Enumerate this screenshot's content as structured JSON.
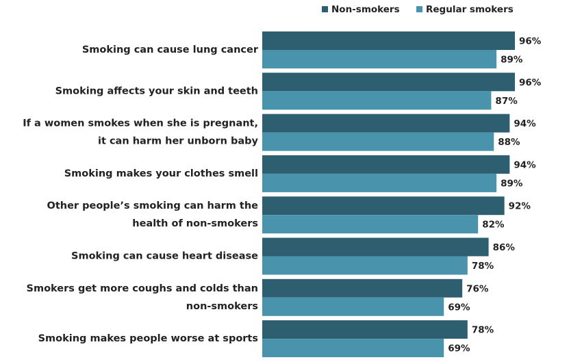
{
  "chart_data": {
    "type": "bar",
    "orientation": "horizontal",
    "categories": [
      [
        "Smoking can cause lung cancer"
      ],
      [
        "Smoking affects your skin and teeth"
      ],
      [
        "If a women smokes when she is pregnant,",
        "it can harm her unborn baby"
      ],
      [
        "Smoking makes your clothes smell"
      ],
      [
        "Other people’s smoking can harm the",
        "health of non-smokers"
      ],
      [
        "Smoking can cause heart disease"
      ],
      [
        "Smokers get more coughs and colds than",
        "non-smokers"
      ],
      [
        "Smoking makes people worse at sports"
      ]
    ],
    "series": [
      {
        "name": "Non-smokers",
        "color": "#2e5f70",
        "values": [
          96,
          96,
          94,
          94,
          92,
          86,
          76,
          78
        ],
        "value_labels": [
          "96%",
          "96%",
          "94%",
          "94%",
          "92%",
          "86%",
          "76%",
          "78%"
        ]
      },
      {
        "name": "Regular smokers",
        "color": "#4a93ad",
        "values": [
          89,
          87,
          88,
          89,
          82,
          78,
          69,
          69
        ],
        "value_labels": [
          "89%",
          "87%",
          "88%",
          "89%",
          "82%",
          "78%",
          "69%",
          "69%"
        ]
      }
    ],
    "legend": "top-right"
  }
}
